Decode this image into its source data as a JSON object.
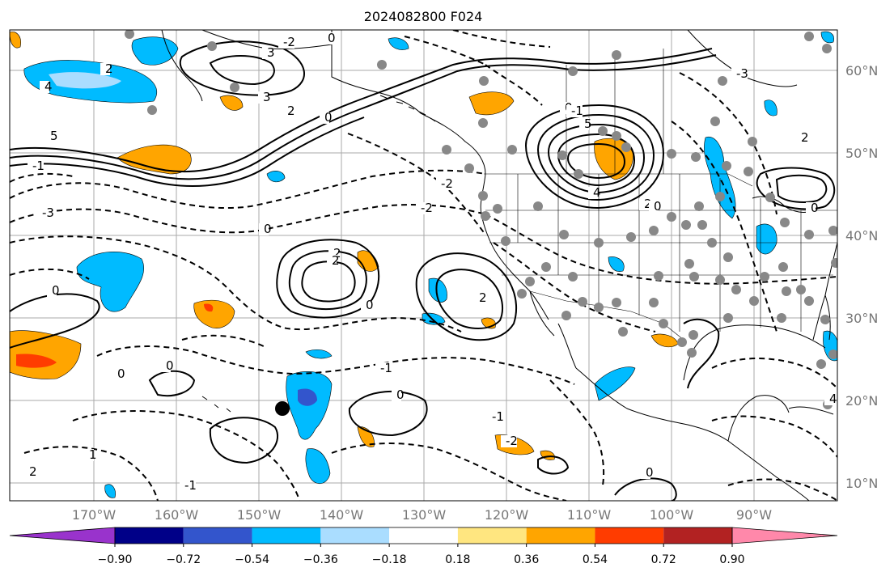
{
  "title": "2024082800 F024",
  "lat_labels": [
    "60°N",
    "50°N",
    "40°N",
    "30°N",
    "20°N",
    "10°N"
  ],
  "lon_labels": [
    "170°W",
    "160°W",
    "150°W",
    "140°W",
    "130°W",
    "120°W",
    "110°W",
    "100°W",
    "90°W"
  ],
  "colorbar": {
    "labels": [
      "−0.90",
      "−0.72",
      "−0.54",
      "−0.36",
      "−0.18",
      "0.18",
      "0.36",
      "0.54",
      "0.72",
      "0.90"
    ],
    "colors": [
      "#9933cc",
      "#000088",
      "#3355cc",
      "#00bbff",
      "#aaddff",
      "#ffffff",
      "#ffe680",
      "#ffa500",
      "#ff3c00",
      "#b22222",
      "#ff88aa"
    ]
  },
  "contour_labels": [
    "0",
    "2",
    "3",
    "4",
    "5",
    "2",
    "0",
    "-1",
    "-2",
    "-3",
    "0",
    "2",
    "2",
    "2",
    "0",
    "0",
    "-1",
    "-2",
    "0",
    "0",
    "0",
    "-1",
    "1",
    "-2",
    "-1",
    "2",
    "5",
    "4",
    "2",
    "0",
    "-3",
    "2",
    "0",
    "0",
    "-1",
    "3",
    "-2",
    "0",
    "4"
  ],
  "colors": {
    "land": "#ffffff",
    "ocean": "#ffffff",
    "grid": "#aaaaaa",
    "coast": "#000000",
    "station_dot": "#888888",
    "tc_marker": "#000000"
  }
}
